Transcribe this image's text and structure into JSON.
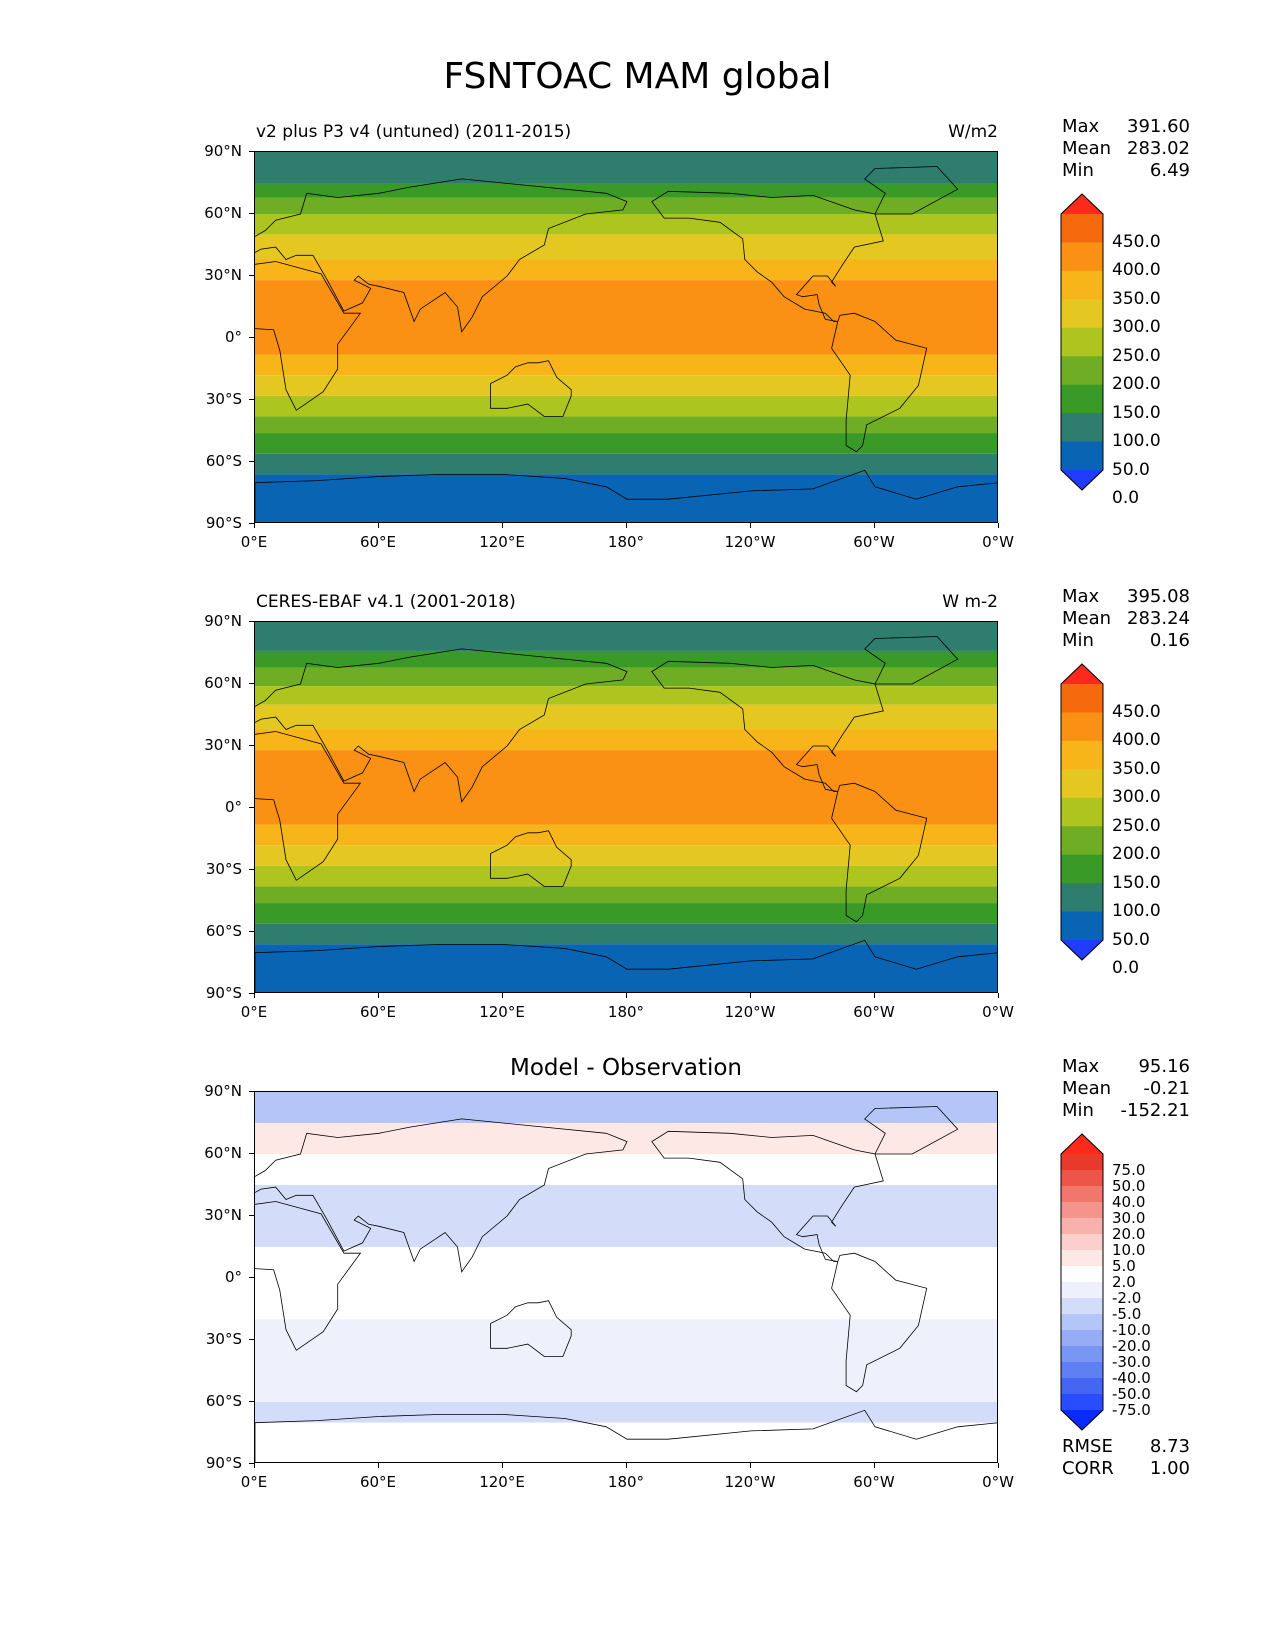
{
  "title": "FSNTOAC MAM global",
  "lat_labels": [
    "90°N",
    "60°N",
    "30°N",
    "0°",
    "30°S",
    "60°S",
    "90°S"
  ],
  "lon_labels": [
    "0°E",
    "60°E",
    "120°E",
    "180°",
    "120°W",
    "60°W",
    "0°W"
  ],
  "panels": [
    {
      "title": "v2 plus P3 v4 (untuned) (2011-2015)",
      "units": "W/m2",
      "stats": {
        "max_label": "Max",
        "max": "391.60",
        "mean_label": "Mean",
        "mean": "283.02",
        "min_label": "Min",
        "min": "6.49"
      },
      "colorbar": {
        "labels": [
          "450.0",
          "400.0",
          "350.0",
          "300.0",
          "250.0",
          "200.0",
          "150.0",
          "100.0",
          "50.0",
          "0.0"
        ],
        "colors": [
          "#1f3cff",
          "#0a64b4",
          "#2e7d6e",
          "#3a9a28",
          "#6fae24",
          "#aec51f",
          "#e5c722",
          "#f8b51a",
          "#fa9014",
          "#f56a0d",
          "#ff2a1c"
        ]
      },
      "zones": [
        {
          "lat_from": 90,
          "lat_to": 75,
          "value": 75
        },
        {
          "lat_from": 75,
          "lat_to": 68,
          "value": 125
        },
        {
          "lat_from": 68,
          "lat_to": 60,
          "value": 175
        },
        {
          "lat_from": 60,
          "lat_to": 50,
          "value": 225
        },
        {
          "lat_from": 50,
          "lat_to": 38,
          "value": 275
        },
        {
          "lat_from": 38,
          "lat_to": 28,
          "value": 325
        },
        {
          "lat_from": 28,
          "lat_to": -8,
          "value": 375
        },
        {
          "lat_from": -8,
          "lat_to": -18,
          "value": 325
        },
        {
          "lat_from": -18,
          "lat_to": -28,
          "value": 275
        },
        {
          "lat_from": -28,
          "lat_to": -38,
          "value": 225
        },
        {
          "lat_from": -38,
          "lat_to": -46,
          "value": 175
        },
        {
          "lat_from": -46,
          "lat_to": -56,
          "value": 125
        },
        {
          "lat_from": -56,
          "lat_to": -66,
          "value": 75
        },
        {
          "lat_from": -66,
          "lat_to": -90,
          "value": 25
        }
      ]
    },
    {
      "title": "CERES-EBAF v4.1 (2001-2018)",
      "units": "W m-2",
      "stats": {
        "max_label": "Max",
        "max": "395.08",
        "mean_label": "Mean",
        "mean": "283.24",
        "min_label": "Min",
        "min": "0.16"
      },
      "colorbar": {
        "labels": [
          "450.0",
          "400.0",
          "350.0",
          "300.0",
          "250.0",
          "200.0",
          "150.0",
          "100.0",
          "50.0",
          "0.0"
        ],
        "colors": [
          "#1f3cff",
          "#0a64b4",
          "#2e7d6e",
          "#3a9a28",
          "#6fae24",
          "#aec51f",
          "#e5c722",
          "#f8b51a",
          "#fa9014",
          "#f56a0d",
          "#ff2a1c"
        ]
      },
      "zones": [
        {
          "lat_from": 90,
          "lat_to": 76,
          "value": 75
        },
        {
          "lat_from": 76,
          "lat_to": 68,
          "value": 125
        },
        {
          "lat_from": 68,
          "lat_to": 59,
          "value": 175
        },
        {
          "lat_from": 59,
          "lat_to": 50,
          "value": 225
        },
        {
          "lat_from": 50,
          "lat_to": 38,
          "value": 275
        },
        {
          "lat_from": 38,
          "lat_to": 28,
          "value": 325
        },
        {
          "lat_from": 28,
          "lat_to": -8,
          "value": 375
        },
        {
          "lat_from": -8,
          "lat_to": -18,
          "value": 325
        },
        {
          "lat_from": -18,
          "lat_to": -28,
          "value": 275
        },
        {
          "lat_from": -28,
          "lat_to": -38,
          "value": 225
        },
        {
          "lat_from": -38,
          "lat_to": -46,
          "value": 175
        },
        {
          "lat_from": -46,
          "lat_to": -56,
          "value": 125
        },
        {
          "lat_from": -56,
          "lat_to": -66,
          "value": 75
        },
        {
          "lat_from": -66,
          "lat_to": -90,
          "value": 25
        }
      ]
    },
    {
      "title": "Model - Observation",
      "units": "",
      "stats": {
        "max_label": "Max",
        "max": "95.16",
        "mean_label": "Mean",
        "mean": "-0.21",
        "min_label": "Min",
        "min": "-152.21"
      },
      "colorbar": {
        "labels": [
          "75.0",
          "50.0",
          "40.0",
          "30.0",
          "20.0",
          "10.0",
          "5.0",
          "2.0",
          "-2.0",
          "-5.0",
          "-10.0",
          "-20.0",
          "-30.0",
          "-40.0",
          "-50.0",
          "-75.0"
        ],
        "colors": [
          "#0a2aff",
          "#2a4cff",
          "#4466f2",
          "#5f80f2",
          "#7a96f3",
          "#96adf5",
          "#b4c6f8",
          "#d3ddfa",
          "#eef1fc",
          "#ffffff",
          "#fde8e6",
          "#fbcfcb",
          "#f8b2ac",
          "#f5948c",
          "#f1766b",
          "#ec5548",
          "#e83a2a",
          "#ff2a1c"
        ]
      },
      "zones": [
        {
          "lat_from": 90,
          "lat_to": 75,
          "value": -8
        },
        {
          "lat_from": 75,
          "lat_to": 60,
          "value": 7
        },
        {
          "lat_from": 60,
          "lat_to": 45,
          "value": 3
        },
        {
          "lat_from": 45,
          "lat_to": 15,
          "value": -4
        },
        {
          "lat_from": 15,
          "lat_to": -20,
          "value": 3
        },
        {
          "lat_from": -20,
          "lat_to": -60,
          "value": 0
        },
        {
          "lat_from": -60,
          "lat_to": -70,
          "value": -3
        },
        {
          "lat_from": -70,
          "lat_to": -90,
          "value": 3
        }
      ],
      "extra_stats": {
        "rmse_label": "RMSE",
        "rmse": "8.73",
        "corr_label": "CORR",
        "corr": "1.00"
      }
    }
  ]
}
